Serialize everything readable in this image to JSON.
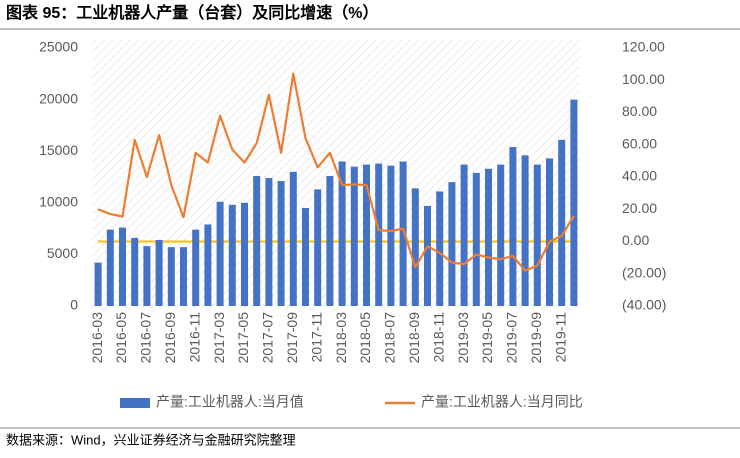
{
  "chart_data": {
    "type": "bar_line",
    "title": "图表 95：工业机器人产量（台套）及同比增速（%）",
    "source": "数据来源：Wind，兴业证券经济与金融研究院整理",
    "categories": [
      "2016-03",
      null,
      "2016-05",
      null,
      "2016-07",
      null,
      "2016-09",
      null,
      "2016-11",
      null,
      "2017-03",
      null,
      "2017-05",
      null,
      "2017-07",
      null,
      "2017-09",
      null,
      "2017-11",
      null,
      "2018-03",
      null,
      "2018-05",
      null,
      "2018-07",
      null,
      "2018-09",
      null,
      "2018-11",
      null,
      "2019-03",
      null,
      "2019-05",
      null,
      "2019-07",
      null,
      "2019-09",
      null,
      "2019-11",
      null
    ],
    "series": [
      {
        "name": "产量:工业机器人:当月值",
        "type": "bar",
        "color": "#4472c4",
        "values": [
          4200,
          7400,
          7600,
          6600,
          5800,
          6400,
          5700,
          5700,
          7400,
          7900,
          10100,
          9800,
          10000,
          12600,
          12400,
          12100,
          13000,
          9500,
          11300,
          12600,
          14000,
          13500,
          13700,
          13800,
          13600,
          14000,
          11400,
          9700,
          11100,
          12000,
          13700,
          12900,
          13300,
          13700,
          15400,
          14600,
          13700,
          14300,
          16100,
          20000
        ]
      },
      {
        "name": "产量:工业机器人:当月同比",
        "type": "line",
        "axis": "y2",
        "color": "#ed7d31",
        "values": [
          20,
          17,
          15.5,
          63,
          40,
          66,
          35,
          15,
          55,
          49,
          78,
          57,
          49,
          61,
          91,
          55,
          104,
          64,
          46,
          55,
          35,
          35.5,
          35,
          7,
          6.5,
          8,
          -16,
          -3,
          -7,
          -13,
          -14,
          -8,
          -10,
          -11,
          -9,
          -18,
          -15,
          0,
          3.5,
          16
        ]
      }
    ],
    "ylim": [
      0,
      25000
    ],
    "yticks": [
      0,
      5000,
      10000,
      15000,
      20000,
      25000
    ],
    "y2lim": [
      -40,
      120
    ],
    "y2ticks": [
      {
        "value": -40,
        "label": "(40.00)"
      },
      {
        "value": -20,
        "label": "(20.00)"
      },
      {
        "value": 0,
        "label": "0.00"
      },
      {
        "value": 20,
        "label": "20.00"
      },
      {
        "value": 40,
        "label": "40.00"
      },
      {
        "value": 60,
        "label": "60.00"
      },
      {
        "value": 80,
        "label": "80.00"
      },
      {
        "value": 100,
        "label": "100.00"
      },
      {
        "value": 120,
        "label": "120.00"
      }
    ],
    "negative_label_color": "#ff0000",
    "zero_line_color": "#ffc000",
    "legend": "bottom"
  }
}
